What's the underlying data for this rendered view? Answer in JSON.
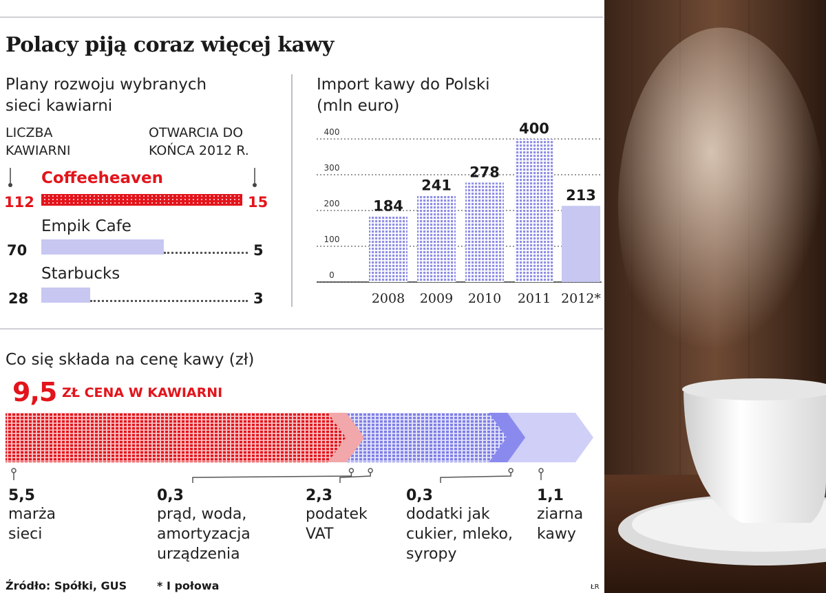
{
  "header": {
    "title": "Polacy piją coraz więcej kawy"
  },
  "chains": {
    "subtitle_line1": "Plany rozwoju wybranych",
    "subtitle_line2": "sieci kawiarni",
    "left_header_line1": "LICZBA",
    "left_header_line2": "KAWIARNI",
    "right_header_line1": "OTWARCIA DO",
    "right_header_line2": "KOŃCA 2012 R.",
    "items": [
      {
        "name": "Coffeeheaven",
        "count": "112",
        "openings": "15",
        "count_value": 112,
        "color": "#e3141b"
      },
      {
        "name": "Empik Cafe",
        "count": "70",
        "openings": "5",
        "count_value": 70,
        "color": "#c7c7f2"
      },
      {
        "name": "Starbucks",
        "count": "28",
        "openings": "3",
        "count_value": 28,
        "color": "#c7c7f2"
      }
    ]
  },
  "import_chart": {
    "title_line1": "Import kawy do Polski",
    "title_line2": "(mln euro)",
    "footnote_mark": "*"
  },
  "price": {
    "subtitle": "Co się składa na cenę kawy (zł)",
    "total": "9,5",
    "total_label": "ZŁ CENA W KAWIARNI",
    "components": [
      {
        "value": "5,5",
        "line1": "marża",
        "line2": "sieci",
        "line3": "",
        "amount": 5.5,
        "color": "#e3141b"
      },
      {
        "value": "0,3",
        "line1": "prąd, woda,",
        "line2": "amortyzacja",
        "line3": "urządzenia",
        "amount": 0.3,
        "color": "#f2a7aa"
      },
      {
        "value": "2,3",
        "line1": "podatek",
        "line2": "VAT",
        "line3": "",
        "amount": 2.3,
        "color": "#7d7de6"
      },
      {
        "value": "0,3",
        "line1": "dodatki jak",
        "line2": "cukier, mleko,",
        "line3": "syropy",
        "amount": 0.3,
        "color": "#8a8aee"
      },
      {
        "value": "1,1",
        "line1": "ziarna",
        "line2": "kawy",
        "line3": "",
        "amount": 1.1,
        "color": "#cfcff7"
      }
    ]
  },
  "footer": {
    "source": "Źródło: Spółki, GUS",
    "note": "* I połowa",
    "initials": "ŁR"
  },
  "colors": {
    "accent_red": "#e3141b",
    "accent_blue": "#8f8fe6",
    "light_blue": "#c7c7f2"
  },
  "chart_data": {
    "type": "bar",
    "title": "Import kawy do Polski",
    "ylabel": "(mln euro)",
    "categories": [
      "2008",
      "2009",
      "2010",
      "2011",
      "2012*"
    ],
    "values": [
      184,
      241,
      278,
      400,
      213
    ],
    "value_labels": [
      "184",
      "241",
      "278",
      "400",
      "213"
    ],
    "ylim": [
      0,
      400
    ],
    "yticks": [
      0,
      100,
      200,
      300,
      400
    ],
    "ytick_labels": [
      "0",
      "100",
      "200",
      "300",
      "400"
    ],
    "grid": true
  }
}
